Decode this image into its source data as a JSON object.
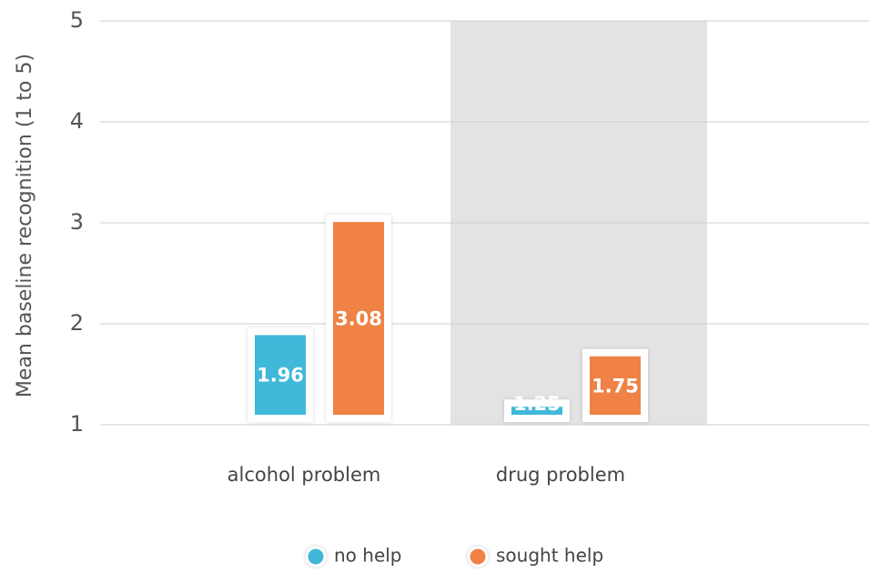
{
  "chart_data": {
    "type": "bar",
    "ylabel": "Mean baseline recognition (1 to 5)",
    "categories": [
      "alcohol problem",
      "drug problem"
    ],
    "series": [
      {
        "name": "no help",
        "color": "#3fb8d9",
        "values": [
          1.96,
          1.25
        ]
      },
      {
        "name": "sought help",
        "color": "#ef8244",
        "values": [
          3.08,
          1.75
        ]
      }
    ],
    "ylim": [
      1,
      5
    ],
    "yticks": [
      1,
      2,
      3,
      4,
      5
    ],
    "grid": true,
    "legend": "bottom"
  }
}
